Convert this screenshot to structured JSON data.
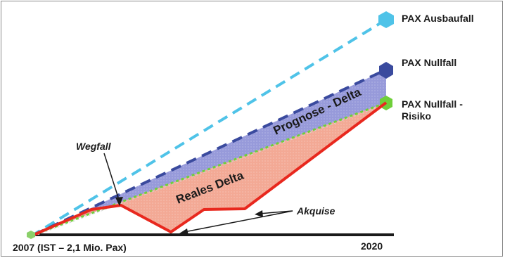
{
  "scenarios": {
    "ausbaufall": "PAX Ausbaufall",
    "nullfall": "PAX Nullfall",
    "risiko_line1": "PAX Nullfall -",
    "risiko_line2": "Risiko"
  },
  "annotations": {
    "wegfall": "Wegfall",
    "akquise": "Akquise",
    "reales_delta": "Reales Delta",
    "prognose_delta": "Prognose - Delta"
  },
  "axis": {
    "start_label": "2007 (IST – 2,1 Mio. Pax)",
    "end_label": "2020"
  },
  "colors": {
    "ausbaufall": "#4fc3e8",
    "nullfall": "#3a4a9e",
    "risiko": "#6fcf3a",
    "real": "#e8281e",
    "prognose_fill": "#8c8fd6",
    "real_fill": "#f2a08a",
    "axis": "#1a1a1a"
  }
}
